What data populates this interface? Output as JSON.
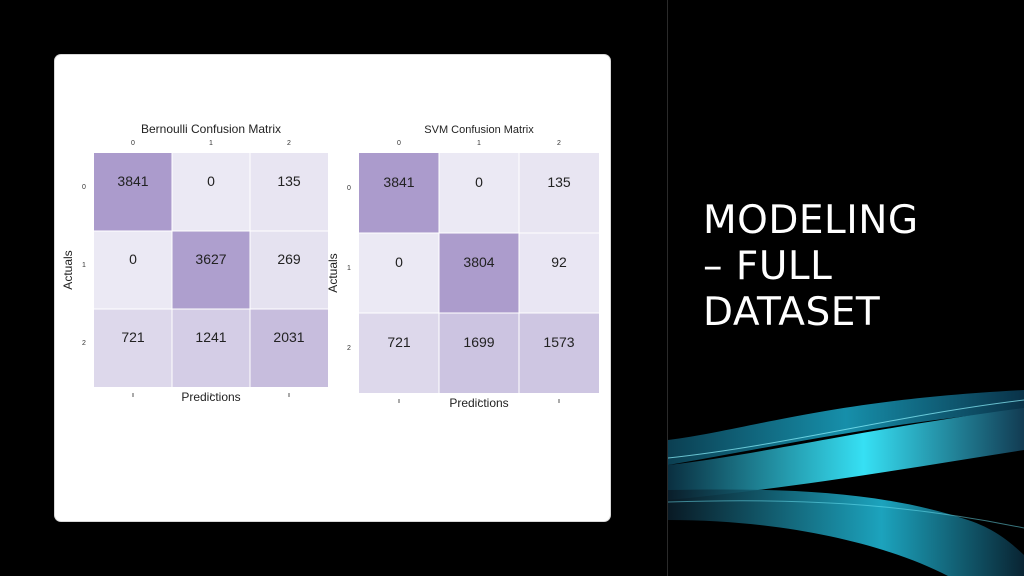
{
  "slide": {
    "title_lines": [
      "MODELING",
      "– FULL",
      "DATASET"
    ],
    "background": "#000000",
    "accent": "#2ad6f0"
  },
  "colors": {
    "cell_low": "#ebe9f4",
    "cell_high": "#ab9bcc",
    "panel": "#ffffff"
  },
  "chart_data": [
    {
      "type": "heatmap",
      "title": "Bernoulli Confusion Matrix",
      "xlabel": "Predictions",
      "ylabel": "Actuals",
      "x_ticks": [
        "0",
        "1",
        "2"
      ],
      "y_ticks": [
        "0",
        "1",
        "2"
      ],
      "values": [
        [
          3841,
          0,
          135
        ],
        [
          0,
          3627,
          269
        ],
        [
          721,
          1241,
          2031
        ]
      ],
      "grid": true
    },
    {
      "type": "heatmap",
      "title": "SVM Confusion Matrix",
      "xlabel": "Predictions",
      "ylabel": "Actuals",
      "x_ticks": [
        "0",
        "1",
        "2"
      ],
      "y_ticks": [
        "0",
        "1",
        "2"
      ],
      "values": [
        [
          3841,
          0,
          135
        ],
        [
          0,
          3804,
          92
        ],
        [
          721,
          1699,
          1573
        ]
      ],
      "grid": true
    }
  ]
}
